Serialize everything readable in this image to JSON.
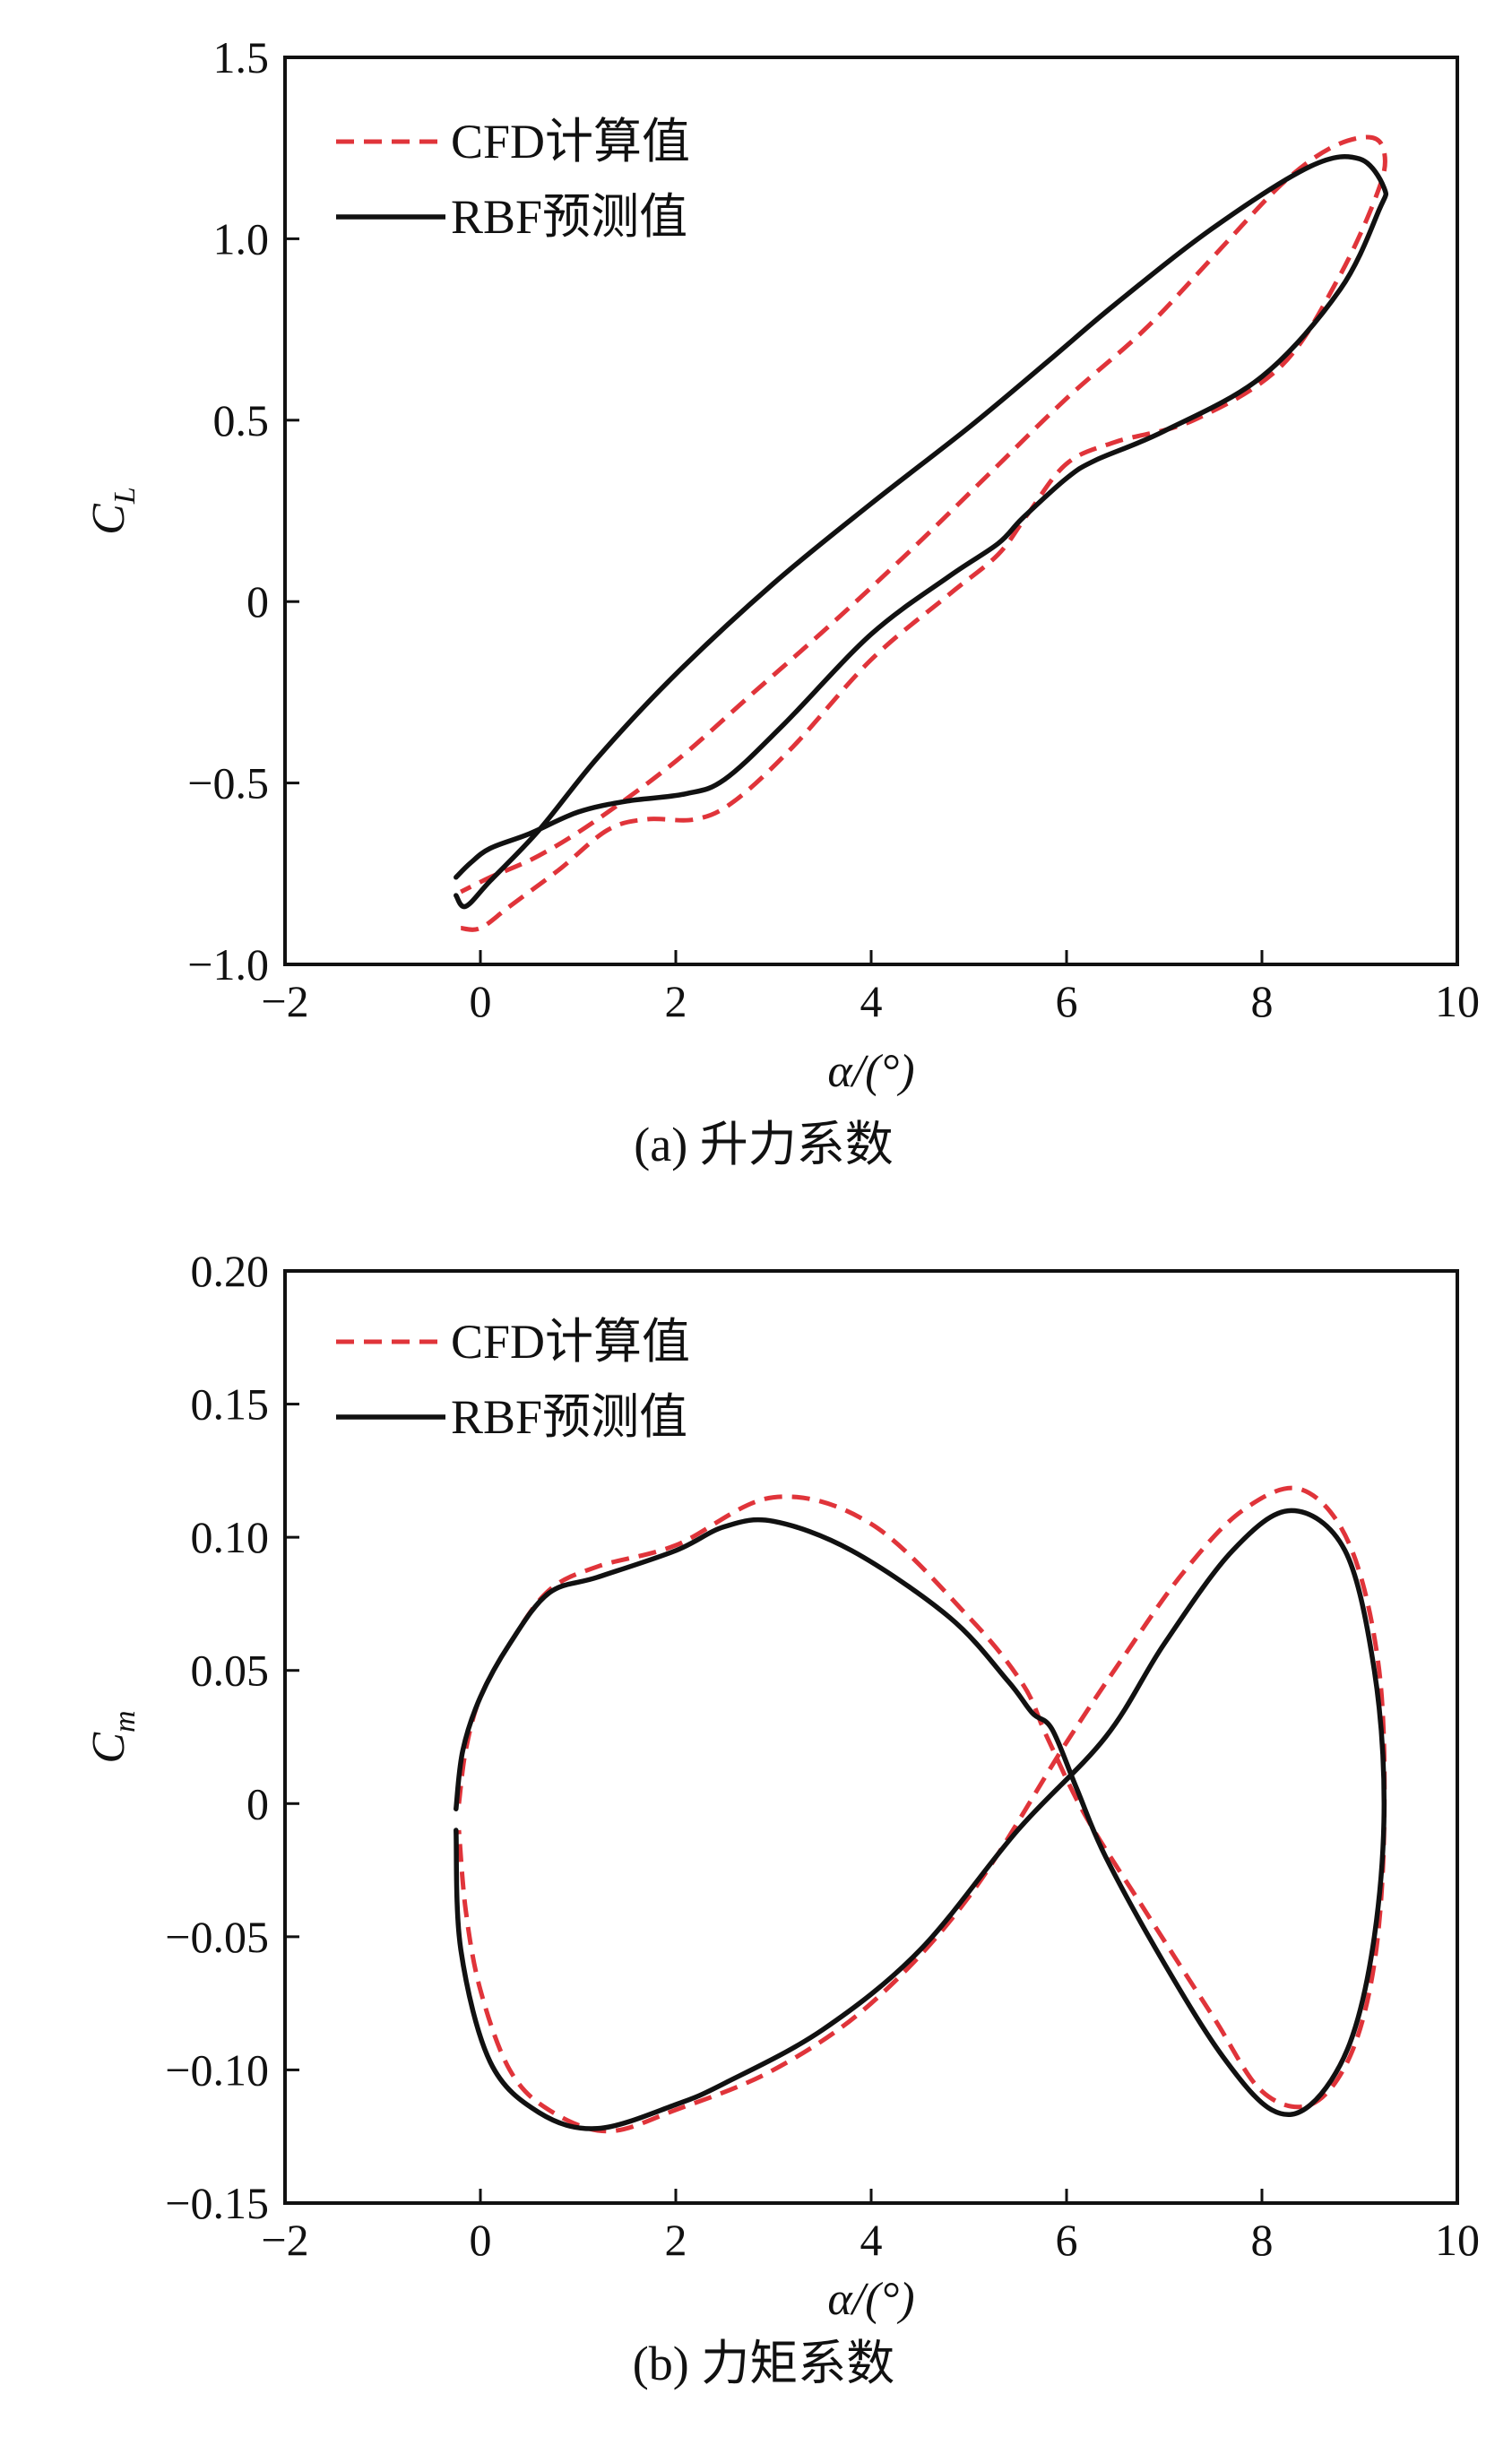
{
  "colors": {
    "cfd": "#e0343a",
    "rbf": "#111111",
    "frame": "#111111"
  },
  "chart_data": [
    {
      "type": "line",
      "caption": "(a) 升力系数",
      "xlabel": "α/(°)",
      "ylabel": {
        "main": "C",
        "sub": "L"
      },
      "xlim": [
        -2,
        10
      ],
      "ylim": [
        -1.0,
        1.5
      ],
      "xticks": [
        -2,
        0,
        2,
        4,
        6,
        8,
        10
      ],
      "xtick_labels": [
        "−2",
        "0",
        "2",
        "4",
        "6",
        "8",
        "10"
      ],
      "yticks": [
        -1.0,
        -0.5,
        0,
        0.5,
        1.0,
        1.5
      ],
      "ytick_labels": [
        "−1.0",
        "−0.5",
        "0",
        "0.5",
        "1.0",
        "1.5"
      ],
      "grid": false,
      "legend_position": "top-left",
      "series": [
        {
          "name": "CFD计算值",
          "style": "dashed",
          "x": [
            -0.2,
            0.0,
            0.3,
            0.8,
            1.3,
            1.7,
            2.2,
            2.6,
            3.2,
            4.0,
            4.8,
            5.3,
            5.6,
            6.0,
            6.5,
            7.3,
            8.2,
            8.8,
            9.2,
            9.25,
            9.1,
            8.7,
            8.2,
            7.5,
            6.8,
            6.0,
            5.2,
            4.4,
            3.6,
            2.8,
            2.0,
            1.2,
            0.6,
            0.1,
            -0.2
          ],
          "y": [
            -0.9,
            -0.9,
            -0.84,
            -0.74,
            -0.63,
            -0.6,
            -0.6,
            -0.55,
            -0.4,
            -0.16,
            0.02,
            0.13,
            0.24,
            0.38,
            0.44,
            0.5,
            0.65,
            0.9,
            1.14,
            1.24,
            1.28,
            1.25,
            1.15,
            0.95,
            0.75,
            0.56,
            0.35,
            0.14,
            -0.06,
            -0.25,
            -0.44,
            -0.6,
            -0.7,
            -0.76,
            -0.8
          ]
        },
        {
          "name": "RBF预测值",
          "style": "solid",
          "x": [
            -0.25,
            -0.1,
            0.1,
            0.5,
            1.0,
            1.5,
            2.1,
            2.5,
            3.1,
            4.0,
            4.8,
            5.3,
            5.55,
            6.0,
            6.3,
            7.0,
            8.0,
            8.8,
            9.2,
            9.25,
            9.0,
            8.5,
            7.5,
            6.5,
            5.8,
            5.0,
            4.0,
            3.0,
            2.0,
            1.2,
            0.6,
            0.1,
            -0.15,
            -0.25
          ],
          "y": [
            -0.76,
            -0.72,
            -0.68,
            -0.64,
            -0.58,
            -0.55,
            -0.53,
            -0.49,
            -0.34,
            -0.09,
            0.07,
            0.16,
            0.23,
            0.34,
            0.39,
            0.47,
            0.62,
            0.86,
            1.08,
            1.14,
            1.22,
            1.2,
            1.03,
            0.82,
            0.66,
            0.48,
            0.27,
            0.05,
            -0.2,
            -0.43,
            -0.63,
            -0.77,
            -0.84,
            -0.81
          ]
        }
      ]
    },
    {
      "type": "line",
      "caption": "(b) 力矩系数",
      "xlabel": "α/(°)",
      "ylabel": {
        "main": "C",
        "sub": "m"
      },
      "xlim": [
        -2,
        10
      ],
      "ylim": [
        -0.15,
        0.2
      ],
      "xticks": [
        -2,
        0,
        2,
        4,
        6,
        8,
        10
      ],
      "xtick_labels": [
        "−2",
        "0",
        "2",
        "4",
        "6",
        "8",
        "10"
      ],
      "yticks": [
        -0.15,
        -0.1,
        -0.05,
        0,
        0.05,
        0.1,
        0.15,
        0.2
      ],
      "ytick_labels": [
        "−0.15",
        "−0.10",
        "−0.05",
        "0",
        "0.05",
        "0.10",
        "0.15",
        "0.20"
      ],
      "grid": false,
      "legend_position": "top-left",
      "series": [
        {
          "name": "CFD计算值",
          "style": "dashed",
          "x": [
            -0.22,
            -0.15,
            0.0,
            0.3,
            0.7,
            1.2,
            2.0,
            3.0,
            4.0,
            5.0,
            5.55,
            5.8,
            6.2,
            6.8,
            7.5,
            8.0,
            8.5,
            8.9,
            9.15,
            9.25,
            9.2,
            8.9,
            8.4,
            7.8,
            7.2,
            6.6,
            6.0,
            5.0,
            4.0,
            3.0,
            2.0,
            1.3,
            0.7,
            0.3,
            0.0,
            -0.15,
            -0.22
          ],
          "y": [
            0.0,
            0.02,
            0.04,
            0.06,
            0.08,
            0.089,
            0.097,
            0.115,
            0.105,
            0.07,
            0.045,
            0.025,
            -0.005,
            -0.04,
            -0.08,
            -0.108,
            -0.113,
            -0.095,
            -0.06,
            -0.01,
            0.05,
            0.097,
            0.118,
            0.11,
            0.087,
            0.056,
            0.023,
            -0.035,
            -0.075,
            -0.1,
            -0.115,
            -0.123,
            -0.115,
            -0.1,
            -0.07,
            -0.04,
            -0.01
          ]
        },
        {
          "name": "RBF预测值",
          "style": "solid",
          "x": [
            -0.25,
            -0.18,
            0.0,
            0.3,
            0.7,
            1.2,
            2.0,
            2.5,
            3.0,
            3.8,
            4.8,
            5.4,
            5.65,
            5.85,
            6.1,
            6.4,
            7.0,
            7.6,
            8.1,
            8.5,
            8.9,
            9.15,
            9.25,
            9.15,
            8.85,
            8.3,
            7.7,
            7.0,
            6.4,
            5.5,
            4.5,
            3.5,
            2.5,
            2.0,
            1.2,
            0.6,
            0.1,
            -0.2,
            -0.25
          ],
          "y": [
            -0.002,
            0.02,
            0.04,
            0.06,
            0.079,
            0.085,
            0.095,
            0.104,
            0.106,
            0.095,
            0.07,
            0.046,
            0.034,
            0.028,
            0.006,
            -0.02,
            -0.06,
            -0.095,
            -0.115,
            -0.113,
            -0.09,
            -0.05,
            0.0,
            0.05,
            0.095,
            0.11,
            0.095,
            0.06,
            0.025,
            -0.01,
            -0.055,
            -0.085,
            -0.105,
            -0.113,
            -0.122,
            -0.116,
            -0.097,
            -0.055,
            -0.01
          ]
        }
      ]
    }
  ]
}
